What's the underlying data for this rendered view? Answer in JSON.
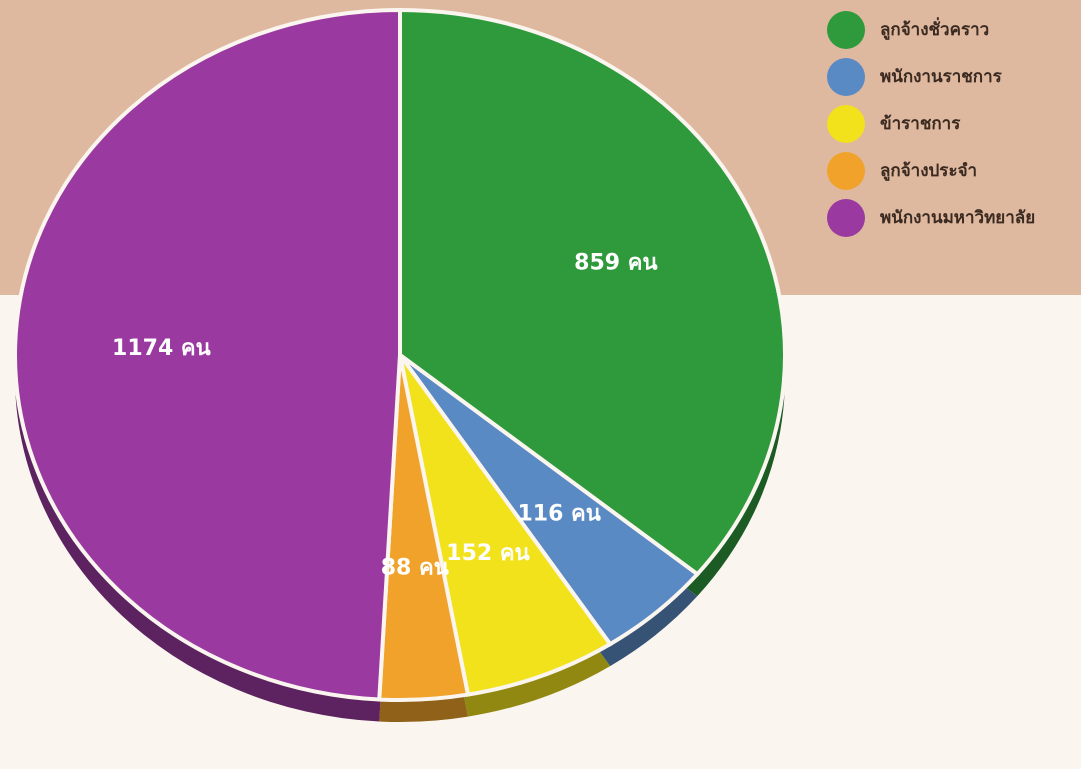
{
  "chart_data": {
    "type": "pie",
    "categories": [
      "ลูกจ้างชั่วคราว",
      "พนักงานราชการ",
      "ข้าราชการ",
      "ลูกจ้างประจำ",
      "พนักงานมหาวิทยาลัย"
    ],
    "values": [
      859,
      116,
      152,
      88,
      1174
    ],
    "value_labels": [
      "859 คน",
      "116 คน",
      "152 คน",
      "88 คน",
      "1174 คน"
    ],
    "colors": [
      "#2e9a3c",
      "#5a8ac4",
      "#f2e21c",
      "#f0a22a",
      "#9a3aa0"
    ],
    "legend": "top-right"
  }
}
